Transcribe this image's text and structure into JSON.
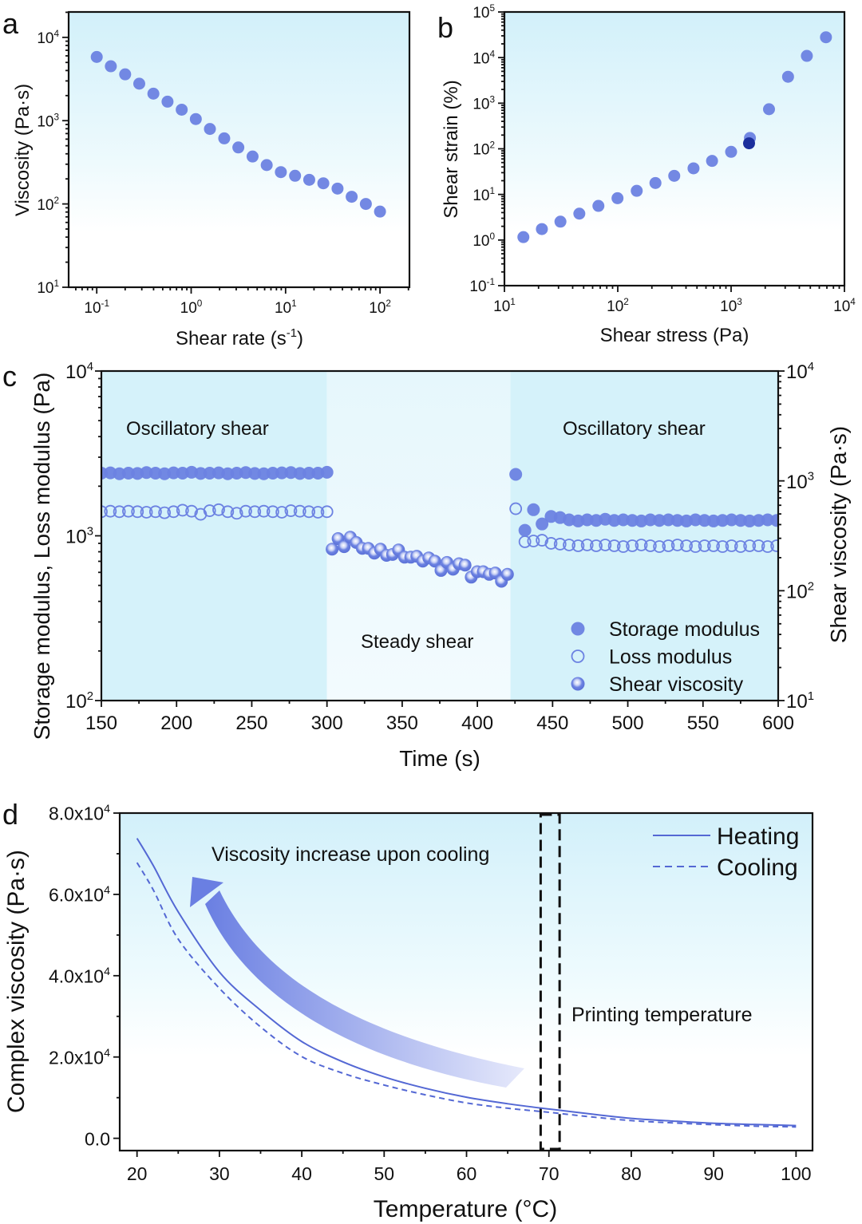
{
  "colors": {
    "marker": "#6c82e2",
    "marker_highlight": "#1b2f9c",
    "line": "#5468d4",
    "arrow_start": "#6a7fe2",
    "arrow_end": "#e6e9fb",
    "shade": "#d4f1fa",
    "axis": "#111111"
  },
  "chart_data": [
    {
      "panel": "a",
      "type": "scatter",
      "xscale": "log",
      "yscale": "log",
      "xlim": [
        0.0504,
        205
      ],
      "ylim": [
        10,
        20180
      ],
      "xticks": [
        0.1,
        1,
        10,
        100
      ],
      "xtick_labels": [
        "10^{-1}",
        "10^{0}",
        "10^{1}",
        "10^{2}"
      ],
      "yticks": [
        10,
        100,
        1000,
        10000
      ],
      "ytick_labels": [
        "10^{1}",
        "10^{2}",
        "10^{3}",
        "10^{4}"
      ],
      "xlabel": "Shear rate (s^{-1})",
      "ylabel": "Viscosity (Pa·s)",
      "series": [
        {
          "id": "viscosity",
          "marker": "filled",
          "x": [
            0.1,
            0.141,
            0.2,
            0.282,
            0.398,
            0.562,
            0.794,
            1.12,
            1.58,
            2.24,
            3.16,
            4.47,
            6.31,
            8.91,
            12.6,
            17.8,
            25.1,
            35.5,
            50.1,
            70.8,
            100
          ],
          "y": [
            5820,
            4500,
            3600,
            2780,
            2110,
            1690,
            1355,
            1045,
            795,
            613,
            477,
            371,
            293,
            241,
            218,
            195,
            177,
            153,
            122,
            100,
            81
          ]
        }
      ]
    },
    {
      "panel": "b",
      "type": "scatter",
      "xscale": "log",
      "yscale": "log",
      "xlim": [
        10,
        10000
      ],
      "ylim": [
        0.1,
        100000
      ],
      "xticks": [
        10,
        100,
        1000,
        10000
      ],
      "xtick_labels": [
        "10^{1}",
        "10^{2}",
        "10^{3}",
        "10^{4}"
      ],
      "yticks": [
        0.1,
        1,
        10,
        100,
        1000,
        10000,
        100000
      ],
      "ytick_labels": [
        "10^{-1}",
        "10^{0}",
        "10^{1}",
        "10^{2}",
        "10^{3}",
        "10^{4}",
        "10^{5}"
      ],
      "xlabel": "Shear stress (Pa)",
      "ylabel": "Shear strain (%)",
      "series": [
        {
          "id": "strain",
          "marker": "filled",
          "x": [
            14.7,
            21.4,
            31.2,
            45.8,
            67.5,
            99.5,
            147,
            215,
            315,
            466,
            679,
            1000,
            1466,
            2160,
            3180,
            4660,
            6870
          ],
          "y": [
            1.16,
            1.74,
            2.53,
            3.79,
            5.6,
            8.26,
            12.0,
            17.8,
            25.6,
            37.3,
            54.3,
            85.8,
            173,
            738,
            3800,
            10900,
            27900
          ]
        },
        {
          "id": "yield-point",
          "marker": "highlight",
          "x": [
            1440
          ],
          "y": [
            132
          ]
        }
      ]
    },
    {
      "panel": "c",
      "type": "scatter",
      "xscale": "linear",
      "yscale": "log",
      "y2scale": "log",
      "xlim": [
        150,
        600
      ],
      "ylim": [
        100,
        10000
      ],
      "y2lim": [
        10,
        10000
      ],
      "xticks": [
        150,
        200,
        250,
        300,
        350,
        400,
        450,
        500,
        550,
        600
      ],
      "xtick_labels": [
        "150",
        "200",
        "250",
        "300",
        "350",
        "400",
        "450",
        "500",
        "550",
        "600"
      ],
      "yticks": [
        100,
        1000,
        10000
      ],
      "ytick_labels": [
        "10^{2}",
        "10^{3}",
        "10^{4}"
      ],
      "y2ticks": [
        10,
        100,
        1000,
        10000
      ],
      "y2tick_labels": [
        "10^{1}",
        "10^{2}",
        "10^{3}",
        "10^{4}"
      ],
      "xlabel": "Time (s)",
      "ylabel": "Storage modulus, Loss modulus (Pa)",
      "y2label": "Shear viscosity (Pa·s)",
      "regions": [
        {
          "from": 150,
          "to": 300,
          "label": "Oscillatory shear",
          "tone": "dark"
        },
        {
          "from": 300,
          "to": 422,
          "label": "Steady shear",
          "tone": "light"
        },
        {
          "from": 422,
          "to": 600,
          "label": "Oscillatory shear",
          "tone": "dark"
        }
      ],
      "legend": {
        "position": "bottom-right"
      },
      "series": [
        {
          "name": "Storage modulus",
          "marker": "filled",
          "axis": "left",
          "x": [
            150,
            156,
            162,
            168,
            174,
            180,
            186,
            192,
            198,
            204,
            210,
            216,
            222,
            228,
            234,
            240,
            246,
            252,
            258,
            264,
            270,
            276,
            282,
            288,
            294,
            300,
            425.5,
            431.6,
            437.3,
            443,
            449,
            455,
            461,
            467,
            473,
            479,
            485,
            491,
            497,
            503,
            509,
            515,
            521,
            527,
            533,
            539,
            545,
            551,
            557,
            563,
            569,
            575,
            581,
            587,
            593,
            599
          ],
          "y": [
            2400,
            2410,
            2380,
            2400,
            2390,
            2420,
            2400,
            2380,
            2410,
            2400,
            2430,
            2390,
            2400,
            2410,
            2380,
            2400,
            2420,
            2390,
            2380,
            2400,
            2410,
            2420,
            2390,
            2400,
            2400,
            2430,
            2360,
            1080,
            1440,
            1180,
            1310,
            1290,
            1250,
            1230,
            1250,
            1240,
            1260,
            1240,
            1250,
            1240,
            1230,
            1250,
            1240,
            1250,
            1240,
            1230,
            1250,
            1240,
            1230,
            1240,
            1250,
            1240,
            1230,
            1240,
            1250,
            1240
          ]
        },
        {
          "name": "Loss modulus",
          "marker": "open",
          "axis": "left",
          "x": [
            150,
            156,
            162,
            168,
            174,
            180,
            186,
            192,
            198,
            204,
            210,
            216,
            222,
            228,
            234,
            240,
            246,
            252,
            258,
            264,
            270,
            276,
            282,
            288,
            294,
            300,
            425.5,
            431.6,
            437.3,
            443,
            449,
            455,
            461,
            467,
            473,
            479,
            485,
            491,
            497,
            503,
            509,
            515,
            521,
            527,
            533,
            539,
            545,
            551,
            557,
            563,
            569,
            575,
            581,
            587,
            593,
            599
          ],
          "y": [
            1400,
            1410,
            1400,
            1410,
            1400,
            1390,
            1400,
            1380,
            1400,
            1430,
            1410,
            1350,
            1420,
            1440,
            1400,
            1370,
            1410,
            1400,
            1410,
            1400,
            1390,
            1420,
            1410,
            1400,
            1390,
            1400,
            1460,
            920,
            930,
            940,
            900,
            890,
            880,
            870,
            880,
            870,
            880,
            870,
            860,
            870,
            880,
            870,
            860,
            870,
            880,
            870,
            860,
            870,
            870,
            860,
            870,
            860,
            870,
            870,
            860,
            870
          ]
        },
        {
          "name": "Shear viscosity",
          "marker": "sphere",
          "axis": "right",
          "x": [
            303.4,
            307.4,
            311.4,
            315.5,
            319.5,
            323.5,
            327.5,
            331.5,
            335.6,
            339.6,
            343.6,
            347.6,
            351.6,
            355.7,
            359.7,
            363.7,
            367.7,
            371.7,
            375.8,
            379.8,
            383.8,
            387.8,
            391.8,
            395.9,
            399.9,
            403.9,
            407.9,
            411.9,
            416.0,
            420.0
          ],
          "y": [
            239,
            298,
            252,
            307,
            275,
            243,
            243,
            220,
            239,
            210,
            214,
            235,
            202,
            202,
            206,
            186,
            199,
            186,
            153,
            181,
            157,
            176,
            171,
            133,
            149,
            149,
            141,
            145,
            122,
            141
          ]
        }
      ]
    },
    {
      "panel": "d",
      "type": "line",
      "xscale": "linear",
      "yscale": "linear",
      "xlim": [
        17.9,
        102
      ],
      "ylim": [
        -3020,
        80000
      ],
      "xticks": [
        20,
        30,
        40,
        50,
        60,
        70,
        80,
        90,
        100
      ],
      "xtick_labels": [
        "20",
        "30",
        "40",
        "50",
        "60",
        "70",
        "80",
        "90",
        "100"
      ],
      "yticks": [
        0,
        20000,
        40000,
        60000,
        80000
      ],
      "ytick_labels": [
        "0.0",
        "2.0x10^{4}",
        "4.0x10^{4}",
        "6.0x10^{4}",
        "8.0x10^{4}"
      ],
      "xlabel": "Temperature (°C)",
      "ylabel": "Complex viscosity (Pa·s)",
      "legend": {
        "position": "top-right"
      },
      "annotations": {
        "arrow_text": "Viscosity increase upon cooling",
        "band_text": "Printing temperature",
        "band": [
          69.0,
          71.3
        ]
      },
      "series": [
        {
          "name": "Heating",
          "style": "solid",
          "x": [
            20,
            22,
            25,
            30,
            35,
            40,
            45,
            50,
            55,
            60,
            65,
            70,
            75,
            80,
            85,
            90,
            95,
            100
          ],
          "y": [
            73800,
            67000,
            55700,
            40900,
            31500,
            23800,
            18800,
            15100,
            12300,
            10100,
            8500,
            7200,
            6000,
            4900,
            4250,
            3700,
            3400,
            3150
          ]
        },
        {
          "name": "Cooling",
          "style": "dashed",
          "x": [
            20,
            22,
            25,
            30,
            35,
            40,
            45,
            50,
            55,
            60,
            65,
            70,
            75,
            80,
            85,
            90,
            95,
            100
          ],
          "y": [
            67800,
            61000,
            49000,
            36900,
            27400,
            20100,
            16000,
            13100,
            10700,
            8700,
            7400,
            6400,
            5300,
            4360,
            3800,
            3360,
            3000,
            2800
          ]
        }
      ]
    }
  ]
}
